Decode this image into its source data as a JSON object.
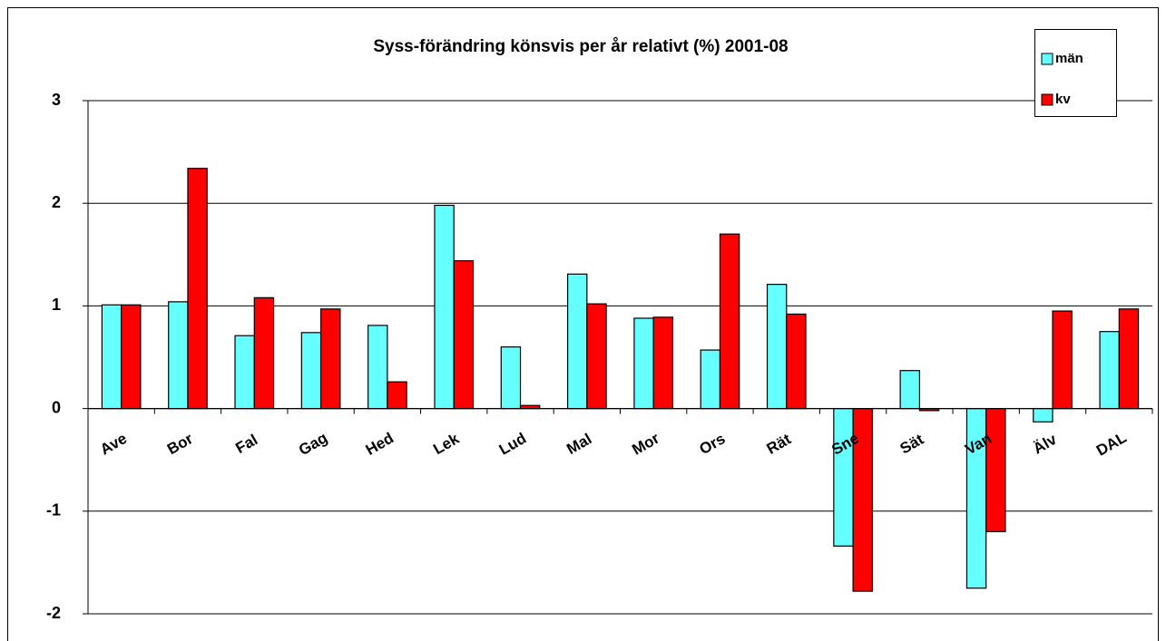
{
  "chart_data": {
    "type": "bar",
    "title": "Syss-förändring könsvis per år relativt (%)   2001-08",
    "categories": [
      "Ave",
      "Bor",
      "Fal",
      "Gag",
      "Hed",
      "Lek",
      "Lud",
      "Mal",
      "Mor",
      "Ors",
      "Rät",
      "Sne",
      "Sät",
      "Van",
      "Älv",
      "DAL"
    ],
    "series": [
      {
        "name": "män",
        "color": "#66ffff",
        "values": [
          1.01,
          1.04,
          0.71,
          0.74,
          0.81,
          1.98,
          0.6,
          1.31,
          0.88,
          0.57,
          1.21,
          -1.34,
          0.37,
          -1.75,
          -0.13,
          0.75
        ]
      },
      {
        "name": "kv",
        "color": "#ff0000",
        "values": [
          1.01,
          2.34,
          1.08,
          0.97,
          0.26,
          1.44,
          0.03,
          1.02,
          0.89,
          1.7,
          0.92,
          -1.78,
          -0.02,
          -1.2,
          0.95,
          0.97
        ]
      }
    ],
    "ylim": [
      -2,
      3
    ],
    "yticks": [
      -2,
      -1,
      0,
      1,
      2,
      3
    ],
    "grid": true,
    "legend": "top-right"
  }
}
